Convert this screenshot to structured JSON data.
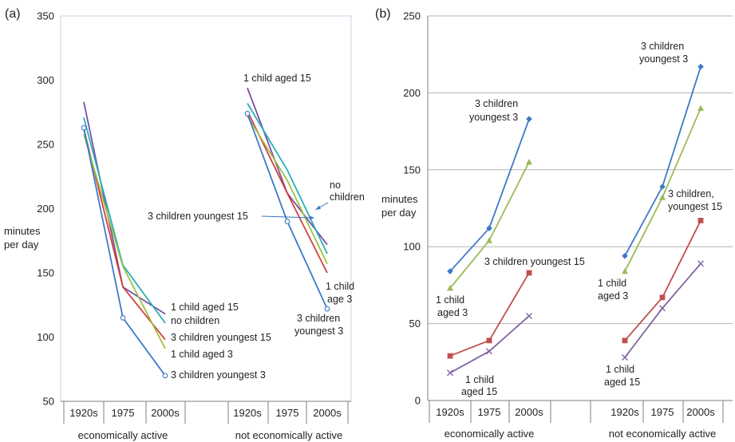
{
  "chart_data": [
    {
      "type": "line",
      "panel_label": "(a)",
      "ylabel": [
        "minutes",
        "per day"
      ],
      "ylim": [
        50,
        350
      ],
      "yticks": [
        50,
        100,
        150,
        200,
        250,
        300,
        350
      ],
      "groups": [
        {
          "name": "economically active",
          "categories": [
            "1920s",
            "1975",
            "2000s"
          ]
        },
        {
          "name": "not economically active",
          "categories": [
            "1920s",
            "1975",
            "2000s"
          ]
        }
      ],
      "grid": false,
      "series": [
        {
          "name": "1 child aged 15",
          "color": "#7b4fa6",
          "marker": "none",
          "group_values": [
            [
              283,
              139,
              118
            ],
            [
              294,
              212,
              172
            ]
          ]
        },
        {
          "name": "no children",
          "color": "#2ab0b8",
          "marker": "none",
          "group_values": [
            [
              271,
              156,
              111
            ],
            [
              282,
              230,
              165
            ]
          ]
        },
        {
          "name": "3 children youngest 15",
          "color": "#d04040",
          "marker": "none",
          "group_values": [
            [
              262,
              139,
              98
            ],
            [
              276,
              212,
              150
            ]
          ]
        },
        {
          "name": "1 child aged 3",
          "color": "#a0c040",
          "marker": "none",
          "group_values": [
            [
              258,
              155,
              91
            ],
            [
              272,
              222,
              157
            ]
          ]
        },
        {
          "name": "3 children youngest 3",
          "color": "#3d79c7",
          "marker": "circle",
          "group_values": [
            [
              263,
              115,
              70
            ],
            [
              274,
              190,
              122
            ]
          ]
        }
      ],
      "annotations": {
        "group0": [
          "1 child aged 15",
          "no children",
          "3 children youngest 15",
          "1 child aged 3",
          "3 children youngest 3"
        ],
        "g1_top": "1 child aged 15",
        "g1_no_children": [
          "no",
          "children"
        ],
        "g1_youngest15": "3 children youngest 15",
        "g1_child3": [
          "1 child",
          "age 3"
        ],
        "g1_youngest3": [
          "3 children",
          "youngest 3"
        ]
      }
    },
    {
      "type": "line",
      "panel_label": "(b)",
      "ylabel": [
        "minutes",
        "per day"
      ],
      "ylim": [
        0,
        250
      ],
      "yticks": [
        0,
        50,
        100,
        150,
        200,
        250
      ],
      "groups": [
        {
          "name": "economically active",
          "categories": [
            "1920s",
            "1975",
            "2000s"
          ]
        },
        {
          "name": "not economically active",
          "categories": [
            "1920s",
            "1975",
            "2000s"
          ]
        }
      ],
      "grid": true,
      "series": [
        {
          "name": "3 children youngest 3",
          "color": "#3d79c7",
          "marker": "diamond",
          "group_values": [
            [
              84,
              112,
              183
            ],
            [
              94,
              139,
              217
            ]
          ]
        },
        {
          "name": "1 child aged 3",
          "color": "#9bbb59",
          "marker": "triangle",
          "group_values": [
            [
              73,
              104,
              155
            ],
            [
              84,
              132,
              190
            ]
          ]
        },
        {
          "name": "3 children youngest 15",
          "color": "#c0504d",
          "marker": "square",
          "group_values": [
            [
              29,
              39,
              83
            ],
            [
              39,
              67,
              117
            ]
          ]
        },
        {
          "name": "1 child aged 15",
          "color": "#8064a2",
          "marker": "x",
          "group_values": [
            [
              18,
              32,
              55
            ],
            [
              28,
              60,
              89
            ]
          ]
        }
      ],
      "annotations": {
        "g0_youngest3": [
          "3 children",
          "youngest 3"
        ],
        "g0_youngest15": "3 children youngest 15",
        "g0_child3": [
          "1 child",
          "aged 3"
        ],
        "g0_child15": [
          "1 child",
          "aged 15"
        ],
        "g1_youngest3": [
          "3 children",
          "youngest 3"
        ],
        "g1_youngest15": [
          "3 children,",
          "youngest 15"
        ],
        "g1_child3": [
          "1 child",
          "aged 3"
        ],
        "g1_child15": [
          "1 child",
          "aged 15"
        ]
      }
    }
  ]
}
